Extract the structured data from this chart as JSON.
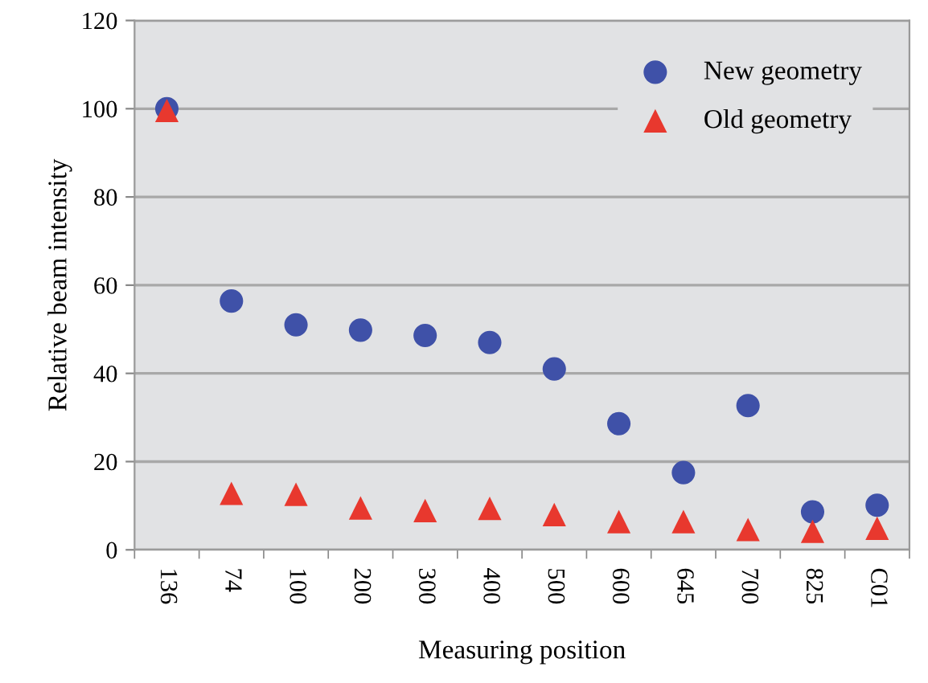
{
  "chart_data": {
    "type": "scatter",
    "xlabel": "Measuring position",
    "ylabel": "Relative beam intensity",
    "categories": [
      "136",
      "74",
      "100",
      "200",
      "300",
      "400",
      "500",
      "600",
      "645",
      "700",
      "825",
      "C01"
    ],
    "series": [
      {
        "name": "New geometry",
        "color": "#3f51a8",
        "marker": "circle",
        "values": [
          100,
          56.4,
          51,
          49.8,
          48.6,
          47,
          41,
          28.6,
          17.5,
          32.7,
          8.6,
          10.1
        ]
      },
      {
        "name": "Old geometry",
        "color": "#e8382e",
        "marker": "triangle",
        "values": [
          99.6,
          12.8,
          12.6,
          9.5,
          8.9,
          9.4,
          8,
          6.4,
          6.4,
          4.6,
          4.2,
          4.9
        ]
      }
    ],
    "ylim": [
      0,
      120
    ],
    "yticks": [
      0,
      20,
      40,
      60,
      80,
      100,
      120
    ],
    "grid": "y",
    "legend": "top right"
  }
}
